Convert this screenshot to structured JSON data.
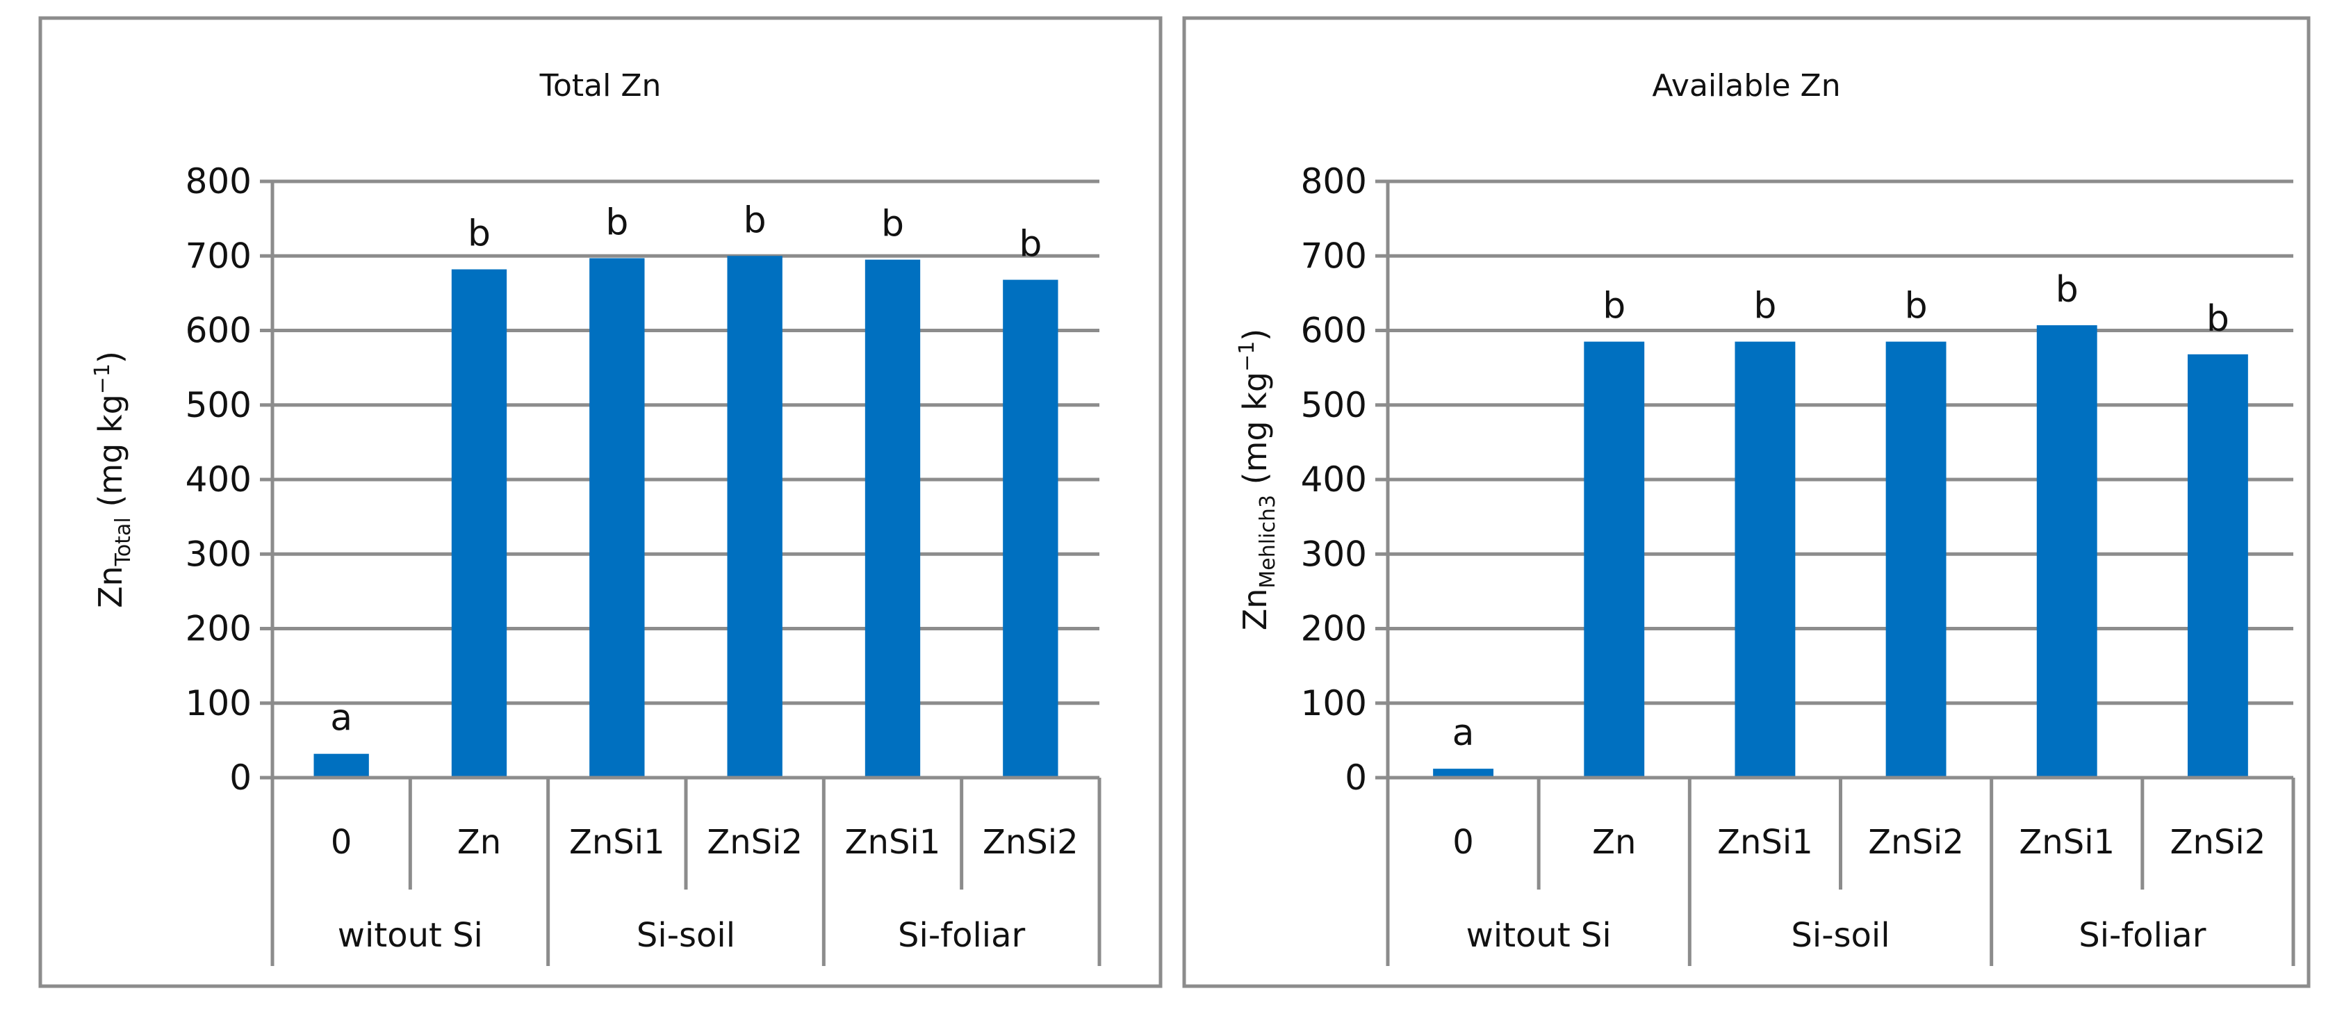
{
  "chart_data": [
    {
      "type": "bar",
      "title": "Total Zn",
      "ylabel": {
        "main": "Zn",
        "sub": "Total",
        "unit": " (mg kg",
        "sup": "−1",
        "close": ")"
      },
      "ylim": [
        0,
        800
      ],
      "yticks": [
        0,
        100,
        200,
        300,
        400,
        500,
        600,
        700,
        800
      ],
      "grid": true,
      "categories": [
        "0",
        "Zn",
        "ZnSi1",
        "ZnSi2",
        "ZnSi1",
        "ZnSi2"
      ],
      "groups": [
        {
          "label": "witout Si",
          "span": 2
        },
        {
          "label": "Si-soil",
          "span": 2
        },
        {
          "label": "Si-foliar",
          "span": 2
        }
      ],
      "values": [
        32,
        682,
        697,
        700,
        695,
        668
      ],
      "letters": [
        "a",
        "b",
        "b",
        "b",
        "b",
        "b"
      ],
      "color": "#0070c0"
    },
    {
      "type": "bar",
      "title": "Available Zn",
      "ylabel": {
        "main": "Zn",
        "sub": "Mehlich3",
        "unit": " (mg kg",
        "sup": "−1",
        "close": ")"
      },
      "ylim": [
        0,
        800
      ],
      "yticks": [
        0,
        100,
        200,
        300,
        400,
        500,
        600,
        700,
        800
      ],
      "grid": true,
      "categories": [
        "0",
        "Zn",
        "ZnSi1",
        "ZnSi2",
        "ZnSi1",
        "ZnSi2"
      ],
      "groups": [
        {
          "label": "witout Si",
          "span": 2
        },
        {
          "label": "Si-soil",
          "span": 2
        },
        {
          "label": "Si-foliar",
          "span": 2
        }
      ],
      "values": [
        12,
        585,
        585,
        585,
        607,
        568
      ],
      "letters": [
        "a",
        "b",
        "b",
        "b",
        "b",
        "b"
      ],
      "color": "#0070c0"
    }
  ]
}
